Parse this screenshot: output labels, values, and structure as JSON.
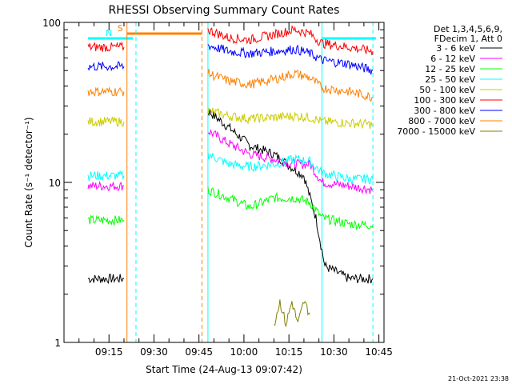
{
  "chart_data": {
    "type": "line",
    "title": "RHESSI Observing Summary Count Rates",
    "xlabel": "Start Time (24-Aug-13 09:07:42)",
    "ylabel": "Count Rate (s⁻¹ detector⁻¹)",
    "yscale": "log",
    "ylim": [
      1,
      100
    ],
    "xlim_minutes": [
      -7.7,
      99.0
    ],
    "x_ticks": [
      "09:15",
      "09:30",
      "09:45",
      "10:00",
      "10:15",
      "10:30",
      "10:45"
    ],
    "y_ticks": [
      "1",
      "10",
      "100"
    ],
    "legend_header": [
      "Det 1,3,4,5,6,9,",
      "FDecim 1, Att 0"
    ],
    "timestamp": "21-Oct-2021 23:38",
    "grid": false,
    "legend_position": "right",
    "markers": {
      "saa": {
        "label": "S",
        "start": "09:21",
        "end": "09:46",
        "color": "#ff8000"
      },
      "night": {
        "label": "N",
        "start": "09:08",
        "end": "09:23",
        "color": "#00ffff"
      }
    },
    "vlines": [
      {
        "time": "09:21",
        "color": "#ff8000",
        "style": "solid"
      },
      {
        "time": "09:24",
        "color": "#00ffff",
        "style": "dashed"
      },
      {
        "time": "09:46",
        "color": "#ff8000",
        "style": "dashed"
      },
      {
        "time": "09:48",
        "color": "#00ffff",
        "style": "solid"
      },
      {
        "time": "10:26",
        "color": "#00ffff",
        "style": "solid"
      },
      {
        "time": "10:43",
        "color": "#00ffff",
        "style": "dashed"
      }
    ],
    "series": [
      {
        "name": "3 - 6 keV",
        "color": "#000000",
        "points": [
          [
            "09:08",
            2.5
          ],
          [
            "09:20",
            2.5
          ],
          [
            "09:48",
            28
          ],
          [
            "09:55",
            22
          ],
          [
            "10:02",
            17
          ],
          [
            "10:10",
            15
          ],
          [
            "10:17",
            12
          ],
          [
            "10:20",
            11
          ],
          [
            "10:24",
            6
          ],
          [
            "10:27",
            3
          ],
          [
            "10:35",
            2.5
          ],
          [
            "10:43",
            2.5
          ]
        ]
      },
      {
        "name": "6 - 12 keV",
        "color": "#ff00ff",
        "points": [
          [
            "09:08",
            9.5
          ],
          [
            "09:20",
            9.5
          ],
          [
            "09:48",
            21
          ],
          [
            "09:55",
            17.5
          ],
          [
            "10:02",
            15
          ],
          [
            "10:10",
            14
          ],
          [
            "10:17",
            13
          ],
          [
            "10:22",
            13
          ],
          [
            "10:26",
            10
          ],
          [
            "10:35",
            9.5
          ],
          [
            "10:43",
            9
          ]
        ]
      },
      {
        "name": "12 - 25 keV",
        "color": "#00ff00",
        "points": [
          [
            "09:08",
            5.8
          ],
          [
            "09:20",
            5.8
          ],
          [
            "09:48",
            9
          ],
          [
            "09:55",
            8
          ],
          [
            "10:02",
            7
          ],
          [
            "10:10",
            8
          ],
          [
            "10:17",
            8
          ],
          [
            "10:22",
            7.5
          ],
          [
            "10:26",
            6
          ],
          [
            "10:35",
            5.5
          ],
          [
            "10:43",
            5.4
          ]
        ]
      },
      {
        "name": "25 - 50 keV",
        "color": "#00ffff",
        "points": [
          [
            "09:08",
            11
          ],
          [
            "09:20",
            11
          ],
          [
            "09:48",
            15
          ],
          [
            "09:55",
            13
          ],
          [
            "10:02",
            12.5
          ],
          [
            "10:10",
            13
          ],
          [
            "10:17",
            14
          ],
          [
            "10:22",
            13.5
          ],
          [
            "10:26",
            11.5
          ],
          [
            "10:35",
            10.5
          ],
          [
            "10:43",
            10.5
          ]
        ]
      },
      {
        "name": "50 - 100 keV",
        "color": "#cccc00",
        "points": [
          [
            "09:08",
            24
          ],
          [
            "09:20",
            24
          ],
          [
            "09:48",
            28
          ],
          [
            "09:55",
            26
          ],
          [
            "10:02",
            25
          ],
          [
            "10:10",
            25.5
          ],
          [
            "10:17",
            26
          ],
          [
            "10:22",
            25.5
          ],
          [
            "10:26",
            24
          ],
          [
            "10:35",
            23.5
          ],
          [
            "10:43",
            23
          ]
        ]
      },
      {
        "name": "100 - 300 keV",
        "color": "#ff0000",
        "points": [
          [
            "09:08",
            70
          ],
          [
            "09:20",
            70
          ],
          [
            "09:48",
            90
          ],
          [
            "09:55",
            80
          ],
          [
            "10:02",
            78
          ],
          [
            "10:10",
            84
          ],
          [
            "10:17",
            90
          ],
          [
            "10:22",
            85
          ],
          [
            "10:26",
            74
          ],
          [
            "10:35",
            70
          ],
          [
            "10:43",
            66
          ]
        ]
      },
      {
        "name": "300 - 800 keV",
        "color": "#0000ff",
        "points": [
          [
            "09:08",
            53
          ],
          [
            "09:20",
            53
          ],
          [
            "09:48",
            72
          ],
          [
            "09:55",
            66
          ],
          [
            "10:02",
            64
          ],
          [
            "10:10",
            66
          ],
          [
            "10:17",
            68
          ],
          [
            "10:22",
            64
          ],
          [
            "10:26",
            58
          ],
          [
            "10:35",
            55
          ],
          [
            "10:43",
            50
          ]
        ]
      },
      {
        "name": "800 - 7000 keV",
        "color": "#ff8000",
        "points": [
          [
            "09:08",
            37
          ],
          [
            "09:20",
            37
          ],
          [
            "09:48",
            48
          ],
          [
            "09:55",
            43
          ],
          [
            "10:02",
            41
          ],
          [
            "10:10",
            44
          ],
          [
            "10:17",
            48
          ],
          [
            "10:22",
            45
          ],
          [
            "10:26",
            39
          ],
          [
            "10:35",
            37
          ],
          [
            "10:43",
            34
          ]
        ]
      },
      {
        "name": "7000 - 15000 keV",
        "color": "#808000",
        "points": [
          [
            "10:10",
            1.3
          ],
          [
            "10:12",
            1.8
          ],
          [
            "10:14",
            1.3
          ],
          [
            "10:16",
            1.8
          ],
          [
            "10:18",
            1.3
          ],
          [
            "10:20",
            1.8
          ],
          [
            "10:22",
            1.5
          ]
        ]
      }
    ]
  }
}
